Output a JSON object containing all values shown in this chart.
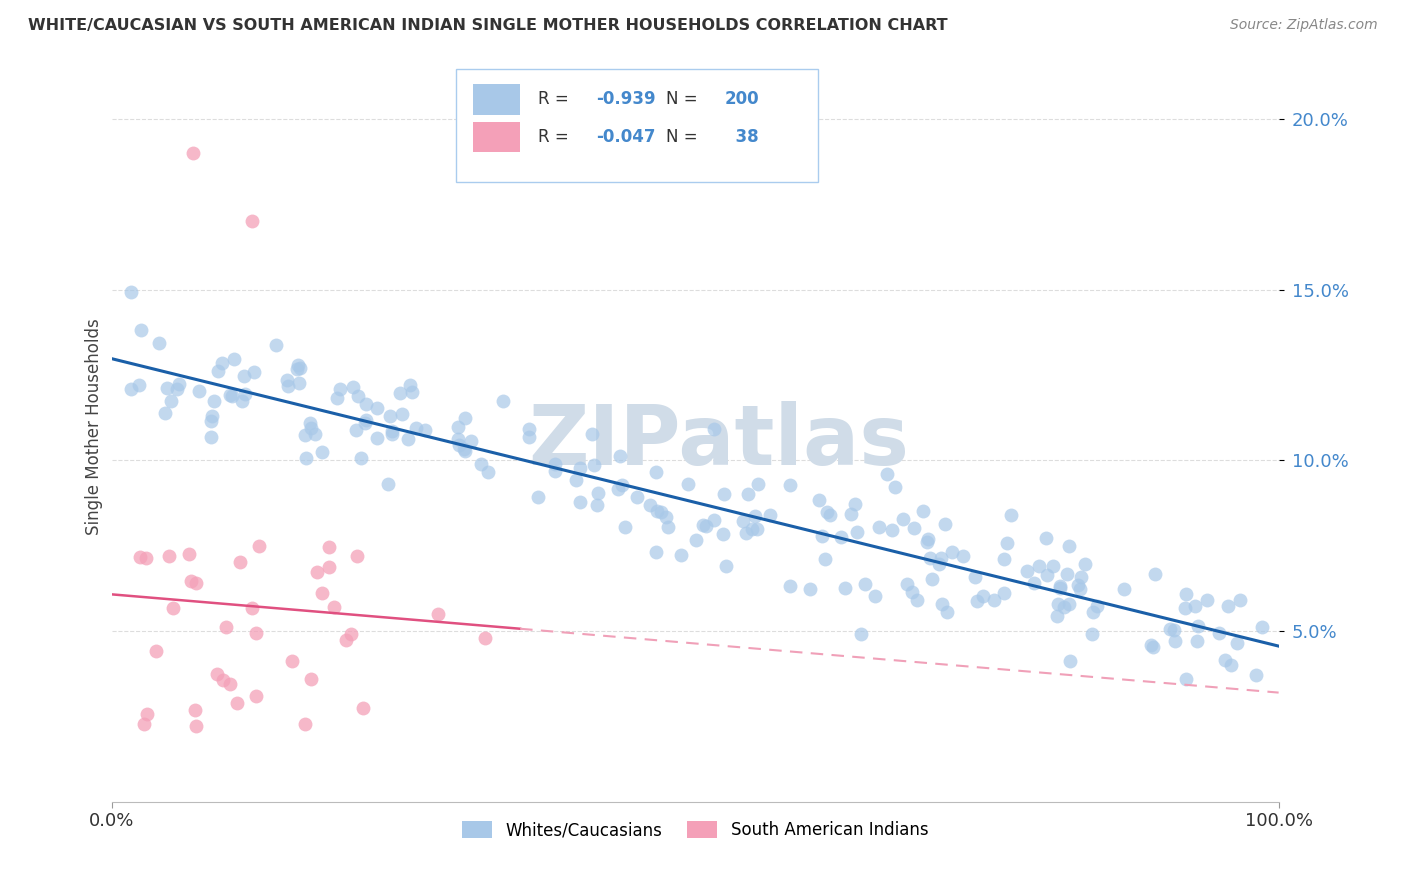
{
  "title": "WHITE/CAUCASIAN VS SOUTH AMERICAN INDIAN SINGLE MOTHER HOUSEHOLDS CORRELATION CHART",
  "source": "Source: ZipAtlas.com",
  "ylabel": "Single Mother Households",
  "xlim": [
    0,
    1.0
  ],
  "ylim": [
    0.0,
    0.22
  ],
  "yticks": [
    0.05,
    0.1,
    0.15,
    0.2
  ],
  "ytick_labels": [
    "5.0%",
    "10.0%",
    "15.0%",
    "20.0%"
  ],
  "blue_R": -0.939,
  "blue_N": 200,
  "pink_R": -0.047,
  "pink_N": 38,
  "blue_color": "#a8c8e8",
  "pink_color": "#f4a0b8",
  "blue_line_color": "#1a5fa8",
  "pink_line_color": "#e05080",
  "pink_dash_color": "#f0a0b8",
  "watermark_color": "#d0dce8",
  "legend_labels": [
    "Whites/Caucasians",
    "South American Indians"
  ],
  "background_color": "#ffffff",
  "grid_color": "#dddddd",
  "tick_label_color": "#4488cc",
  "title_color": "#333333",
  "source_color": "#888888"
}
